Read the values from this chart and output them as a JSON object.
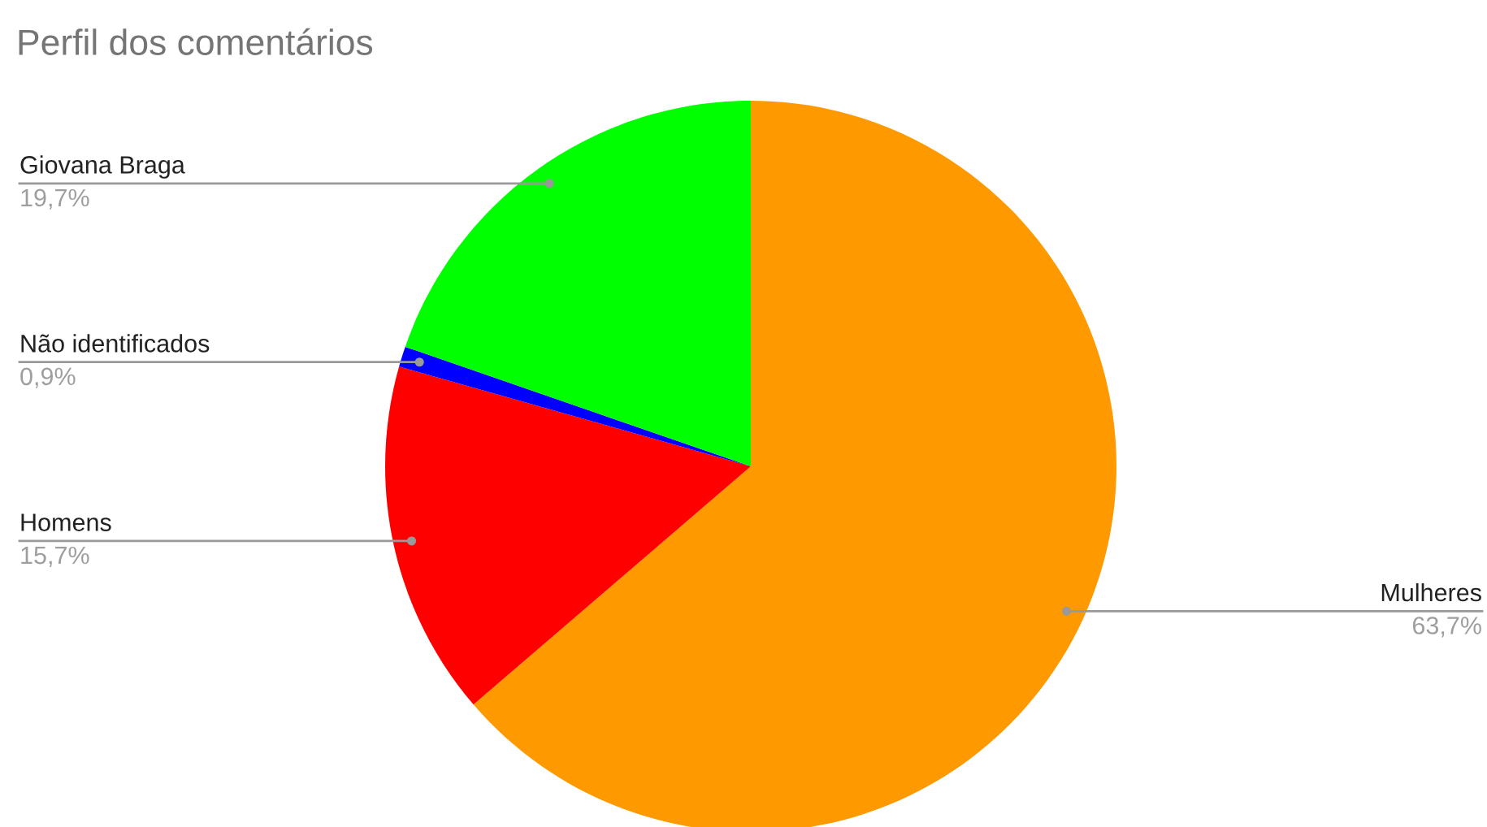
{
  "chart_data": {
    "type": "pie",
    "title": "Perfil dos comentários",
    "categories": [
      "Mulheres",
      "Homens",
      "Não identificados",
      "Giovana Braga"
    ],
    "values": [
      63.7,
      15.7,
      0.9,
      19.7
    ],
    "value_labels": [
      "63,7%",
      "15,7%",
      "0,9%",
      "19,7%"
    ],
    "colors": [
      "#ff9900",
      "#ff0000",
      "#0000ff",
      "#00ff00"
    ],
    "legend": false
  }
}
